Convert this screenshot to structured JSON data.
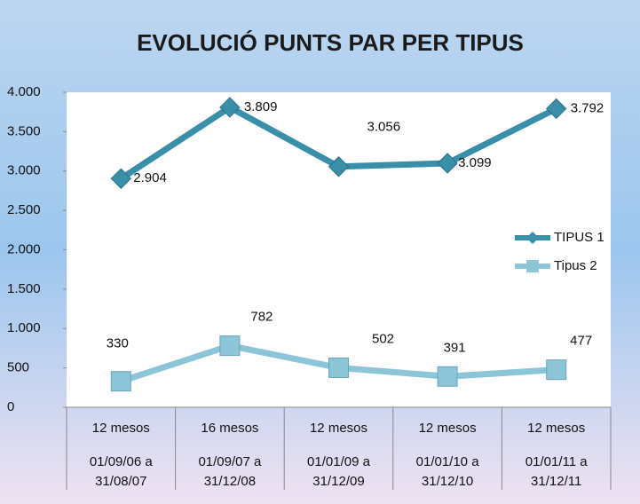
{
  "chart_data": {
    "type": "line",
    "title": "EVOLUCIÓ PUNTS PAR PER TIPUS",
    "categories": [
      [
        "12 mesos",
        "01/09/06 a",
        "31/08/07"
      ],
      [
        "16 mesos",
        "01/09/07 a",
        "31/12/08"
      ],
      [
        "12 mesos",
        "01/01/09 a",
        "31/12/09"
      ],
      [
        "12 mesos",
        "01/01/10 a",
        "31/12/10"
      ],
      [
        "12 mesos",
        "01/01/11 a",
        "31/12/11"
      ]
    ],
    "series": [
      {
        "name": "TIPUS 1",
        "color": "#3a8fa8",
        "marker": "diamond",
        "values": [
          2904,
          3809,
          3056,
          3099,
          3792
        ],
        "value_labels": [
          "2.904",
          "3.809",
          "3.056",
          "3.099",
          "3.792"
        ]
      },
      {
        "name": "Tipus 2",
        "color": "#8cc4d8",
        "marker": "square",
        "values": [
          330,
          782,
          502,
          391,
          477
        ]
      }
    ],
    "ylim": [
      0,
      4000
    ],
    "yticks": [
      0,
      500,
      {
        "value": 1000,
        "label": "1.000"
      },
      {
        "value": 1500,
        "label": "1.500"
      },
      {
        "value": 2000,
        "label": "2.000"
      },
      {
        "value": 2500,
        "label": "2.500"
      },
      {
        "value": 3000,
        "label": "3.000"
      },
      {
        "value": 3500,
        "label": "3.500"
      },
      {
        "value": 4000,
        "label": "4.000"
      }
    ],
    "legend": "right"
  }
}
